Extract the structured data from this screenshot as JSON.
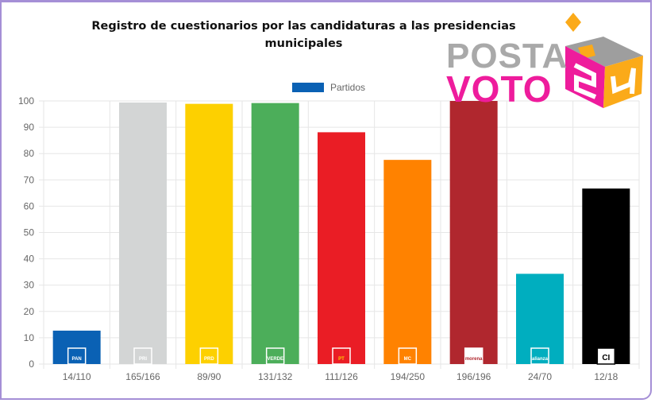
{
  "chart_data": {
    "type": "bar",
    "title": "Registro de cuestionarios por las candidaturas a las presidencias municipales",
    "title_lines": [
      "Registro de cuestionarios por las candidaturas a las presidencias",
      "municipales"
    ],
    "legend": {
      "label": "Partidos",
      "color": "#0a61b4",
      "position": "top"
    },
    "categories": [
      "14/110",
      "165/166",
      "89/90",
      "131/132",
      "111/126",
      "194/250",
      "196/196",
      "24/70",
      "12/18"
    ],
    "parties": [
      "PAN",
      "PRI",
      "PRD",
      "PVEM",
      "PT",
      "MC",
      "Morena",
      "Alianza",
      "CI"
    ],
    "party_badges": [
      "PAN",
      "PRI",
      "PRD",
      "VERDE",
      "PT",
      "MC",
      "morena",
      "alianza",
      "CI"
    ],
    "values": [
      12.7,
      99.4,
      98.9,
      99.2,
      88.1,
      77.6,
      100,
      34.3,
      66.7
    ],
    "colors": [
      "#0a61b4",
      "#d3d5d5",
      "#fdd000",
      "#4cae5a",
      "#ea1d25",
      "#ff8200",
      "#b0272e",
      "#00aebf",
      "#000000"
    ],
    "yticks": [
      0,
      10,
      20,
      30,
      40,
      50,
      60,
      70,
      80,
      90,
      100
    ],
    "ylim": [
      0,
      100
    ],
    "xlabel": "",
    "ylabel": "",
    "grid": true
  },
  "branding": {
    "line1": "POSTA",
    "line2": "VOTO",
    "badge": "24",
    "colors": {
      "gray": "#a9a9a9",
      "pink": "#ee1c9c",
      "orange": "#fbaa19"
    }
  }
}
